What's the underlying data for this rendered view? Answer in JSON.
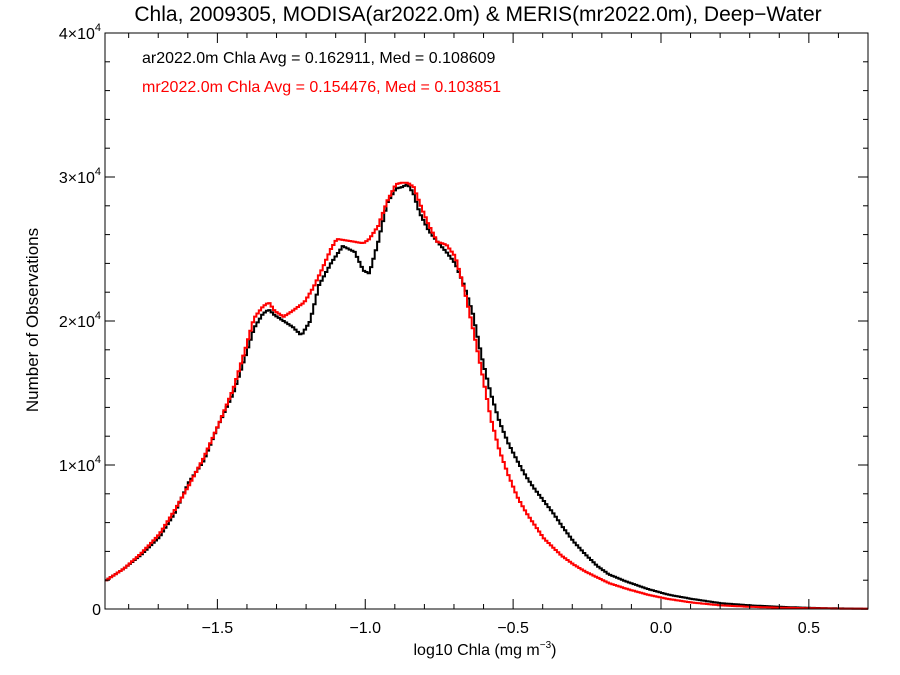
{
  "chart_data": {
    "type": "line",
    "title": "Chla, 2009305, MODISA(ar2022.0m) & MERIS(mr2022.0m), Deep−Water",
    "xlabel": "log10 Chla (mg m",
    "xlabel_sup": "−3",
    "xlabel_suffix": ")",
    "ylabel": "Number of Observations",
    "xlim": [
      -1.88,
      0.7
    ],
    "ylim": [
      0,
      40000
    ],
    "x_ticks": [
      -1.5,
      -1.0,
      -0.5,
      0.0,
      0.5
    ],
    "x_tick_labels": [
      "−1.5",
      "−1.0",
      "−0.5",
      "0.0",
      "0.5"
    ],
    "y_ticks": [
      0,
      10000,
      20000,
      30000,
      40000
    ],
    "y_tick_labels": [
      {
        "mant": "0",
        "exp": ""
      },
      {
        "mant": "1×10",
        "exp": "4"
      },
      {
        "mant": "2×10",
        "exp": "4"
      },
      {
        "mant": "3×10",
        "exp": "4"
      },
      {
        "mant": "4×10",
        "exp": "4"
      }
    ],
    "grid": false,
    "annotations": [
      {
        "text": "ar2022.0m Chla Avg = 0.162911, Med = 0.108609",
        "color": "#000000"
      },
      {
        "text": "mr2022.0m Chla Avg = 0.154476, Med = 0.103851",
        "color": "#ff0000"
      }
    ],
    "series": [
      {
        "color": "#000000",
        "points": [
          [
            -1.88,
            2000
          ],
          [
            -1.82,
            2800
          ],
          [
            -1.76,
            3800
          ],
          [
            -1.7,
            5000
          ],
          [
            -1.65,
            6600
          ],
          [
            -1.6,
            8800
          ],
          [
            -1.55,
            10300
          ],
          [
            -1.5,
            12800
          ],
          [
            -1.45,
            15000
          ],
          [
            -1.41,
            17500
          ],
          [
            -1.38,
            19500
          ],
          [
            -1.35,
            20500
          ],
          [
            -1.33,
            20800
          ],
          [
            -1.31,
            20400
          ],
          [
            -1.28,
            20000
          ],
          [
            -1.25,
            19600
          ],
          [
            -1.22,
            19000
          ],
          [
            -1.19,
            20000
          ],
          [
            -1.16,
            22500
          ],
          [
            -1.12,
            24000
          ],
          [
            -1.08,
            25200
          ],
          [
            -1.04,
            24800
          ],
          [
            -1.01,
            23500
          ],
          [
            -0.99,
            23300
          ],
          [
            -0.96,
            25500
          ],
          [
            -0.93,
            28200
          ],
          [
            -0.9,
            29200
          ],
          [
            -0.88,
            29300
          ],
          [
            -0.86,
            29500
          ],
          [
            -0.84,
            28800
          ],
          [
            -0.82,
            27500
          ],
          [
            -0.79,
            26300
          ],
          [
            -0.76,
            25500
          ],
          [
            -0.73,
            24800
          ],
          [
            -0.7,
            24000
          ],
          [
            -0.67,
            22500
          ],
          [
            -0.64,
            20500
          ],
          [
            -0.61,
            17500
          ],
          [
            -0.58,
            15000
          ],
          [
            -0.55,
            13000
          ],
          [
            -0.52,
            11500
          ],
          [
            -0.49,
            10300
          ],
          [
            -0.46,
            9200
          ],
          [
            -0.43,
            8300
          ],
          [
            -0.4,
            7500
          ],
          [
            -0.37,
            6700
          ],
          [
            -0.34,
            5800
          ],
          [
            -0.3,
            4700
          ],
          [
            -0.26,
            3800
          ],
          [
            -0.22,
            3000
          ],
          [
            -0.18,
            2400
          ],
          [
            -0.12,
            1900
          ],
          [
            -0.05,
            1400
          ],
          [
            0.02,
            1000
          ],
          [
            0.1,
            700
          ],
          [
            0.2,
            400
          ],
          [
            0.3,
            250
          ],
          [
            0.4,
            150
          ],
          [
            0.5,
            80
          ],
          [
            0.6,
            40
          ],
          [
            0.7,
            20
          ]
        ]
      },
      {
        "color": "#ff0000",
        "points": [
          [
            -1.88,
            2000
          ],
          [
            -1.82,
            2800
          ],
          [
            -1.76,
            3900
          ],
          [
            -1.7,
            5200
          ],
          [
            -1.65,
            6800
          ],
          [
            -1.6,
            8600
          ],
          [
            -1.55,
            10500
          ],
          [
            -1.5,
            12800
          ],
          [
            -1.45,
            15300
          ],
          [
            -1.41,
            18000
          ],
          [
            -1.38,
            20200
          ],
          [
            -1.35,
            21000
          ],
          [
            -1.33,
            21300
          ],
          [
            -1.31,
            20700
          ],
          [
            -1.28,
            20300
          ],
          [
            -1.25,
            20700
          ],
          [
            -1.21,
            21300
          ],
          [
            -1.18,
            22300
          ],
          [
            -1.15,
            23600
          ],
          [
            -1.12,
            25000
          ],
          [
            -1.1,
            25700
          ],
          [
            -1.07,
            25600
          ],
          [
            -1.04,
            25500
          ],
          [
            -1.01,
            25400
          ],
          [
            -0.99,
            25700
          ],
          [
            -0.96,
            26600
          ],
          [
            -0.93,
            28300
          ],
          [
            -0.9,
            29500
          ],
          [
            -0.88,
            29600
          ],
          [
            -0.86,
            29600
          ],
          [
            -0.84,
            29300
          ],
          [
            -0.82,
            28200
          ],
          [
            -0.79,
            26700
          ],
          [
            -0.76,
            25500
          ],
          [
            -0.73,
            25300
          ],
          [
            -0.7,
            24500
          ],
          [
            -0.67,
            22300
          ],
          [
            -0.64,
            19500
          ],
          [
            -0.61,
            16500
          ],
          [
            -0.58,
            13300
          ],
          [
            -0.55,
            11000
          ],
          [
            -0.52,
            9300
          ],
          [
            -0.49,
            7800
          ],
          [
            -0.46,
            6700
          ],
          [
            -0.43,
            5800
          ],
          [
            -0.4,
            4900
          ],
          [
            -0.37,
            4300
          ],
          [
            -0.34,
            3700
          ],
          [
            -0.3,
            3100
          ],
          [
            -0.26,
            2600
          ],
          [
            -0.22,
            2200
          ],
          [
            -0.18,
            1800
          ],
          [
            -0.12,
            1400
          ],
          [
            -0.05,
            1000
          ],
          [
            0.02,
            700
          ],
          [
            0.1,
            450
          ],
          [
            0.2,
            250
          ],
          [
            0.3,
            150
          ],
          [
            0.4,
            90
          ],
          [
            0.5,
            50
          ],
          [
            0.6,
            25
          ],
          [
            0.7,
            10
          ]
        ]
      }
    ]
  }
}
